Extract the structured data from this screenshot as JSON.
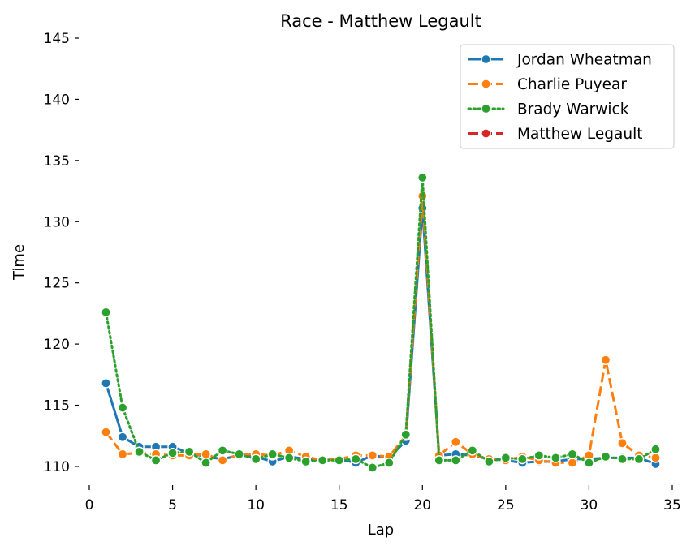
{
  "chart_data": {
    "type": "line",
    "title": "Race - Matthew Legault",
    "xlabel": "Lap",
    "ylabel": "Time",
    "xlim": [
      0,
      35
    ],
    "ylim": [
      109.4,
      145
    ],
    "xticks": [
      0,
      5,
      10,
      15,
      20,
      25,
      30,
      35
    ],
    "yticks": [
      110,
      115,
      120,
      125,
      130,
      135,
      140,
      145
    ],
    "grid": false,
    "legend_position": "top-right",
    "series": [
      {
        "name": "Jordan Wheatman",
        "color": "#1f77b4",
        "dash": "solid",
        "x": [
          1,
          2,
          3,
          4,
          5,
          6,
          7,
          8,
          9,
          10,
          11,
          12,
          13,
          14,
          15,
          16,
          17,
          18,
          19,
          20,
          21,
          22,
          23,
          24,
          25,
          26,
          27,
          28,
          29,
          30,
          31,
          32,
          33,
          34
        ],
        "y": [
          116.8,
          112.4,
          111.6,
          111.6,
          111.6,
          111.1,
          110.8,
          110.6,
          110.9,
          110.8,
          110.4,
          110.8,
          110.6,
          110.5,
          110.6,
          110.3,
          110.9,
          110.7,
          112.1,
          131.1,
          110.9,
          111.0,
          110.9,
          110.6,
          110.5,
          110.3,
          110.4,
          110.4,
          110.6,
          110.6,
          110.7,
          110.7,
          110.7,
          110.2
        ]
      },
      {
        "name": "Charlie Puyear",
        "color": "#ff7f0e",
        "dash": "dashed",
        "x": [
          1,
          2,
          3,
          4,
          5,
          6,
          7,
          8,
          9,
          10,
          11,
          12,
          13,
          14,
          15,
          16,
          17,
          18,
          19,
          20,
          21,
          22,
          23,
          24,
          25,
          26,
          27,
          28,
          29,
          30,
          31,
          32,
          33,
          34
        ],
        "y": [
          112.8,
          111.0,
          111.1,
          111.0,
          110.9,
          110.9,
          111.0,
          110.5,
          111.0,
          111.0,
          110.9,
          111.3,
          110.8,
          110.5,
          110.6,
          110.9,
          110.9,
          110.8,
          112.5,
          132.1,
          110.9,
          112.0,
          111.0,
          110.6,
          110.5,
          110.8,
          110.5,
          110.3,
          110.3,
          110.9,
          118.7,
          111.9,
          110.9,
          110.7
        ]
      },
      {
        "name": "Brady Warwick",
        "color": "#2ca02c",
        "dash": "dotted",
        "x": [
          1,
          2,
          3,
          4,
          5,
          6,
          7,
          8,
          9,
          10,
          11,
          12,
          13,
          14,
          15,
          16,
          17,
          18,
          19,
          20,
          21,
          22,
          23,
          24,
          25,
          26,
          27,
          28,
          29,
          30,
          31,
          32,
          33,
          34
        ],
        "y": [
          122.6,
          114.8,
          111.2,
          110.5,
          111.1,
          111.2,
          110.3,
          111.3,
          111.0,
          110.6,
          111.0,
          110.7,
          110.4,
          110.5,
          110.5,
          110.6,
          109.9,
          110.3,
          112.6,
          133.6,
          110.5,
          110.5,
          111.3,
          110.4,
          110.7,
          110.6,
          110.9,
          110.7,
          111.0,
          110.3,
          110.8,
          110.6,
          110.6,
          111.4
        ]
      },
      {
        "name": "Matthew Legault",
        "color": "#d62728",
        "dash": "dashed",
        "x": [],
        "y": []
      }
    ]
  }
}
